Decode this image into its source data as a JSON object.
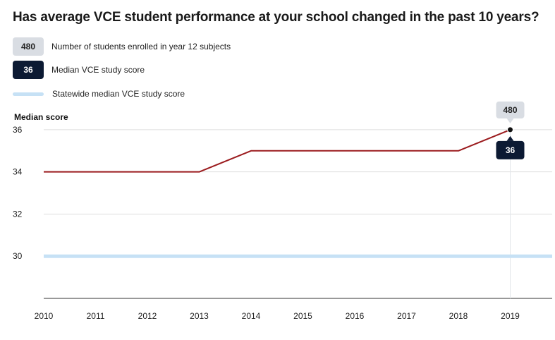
{
  "title": "Has average VCE student performance at your school changed in the past 10 years?",
  "legend": {
    "count_badge": "480",
    "count_label": "Number of students enrolled in year 12 subjects",
    "median_badge": "36",
    "median_label": "Median VCE study score",
    "statewide_label": "Statewide median VCE study score"
  },
  "colors": {
    "school_line": "#9b1b1e",
    "statewide_line": "#c6e1f5",
    "count_badge": "#d9dde3",
    "median_badge": "#0c1a33",
    "grid": "#dddddd"
  },
  "chart_data": {
    "type": "line",
    "title": "Has average VCE student performance at your school changed in the past 10 years?",
    "ylabel": "Median score",
    "xlabel": "",
    "x": [
      "2010",
      "2011",
      "2012",
      "2013",
      "2014",
      "2015",
      "2016",
      "2017",
      "2018",
      "2019"
    ],
    "yticks": [
      30,
      32,
      34,
      36
    ],
    "ylim": [
      28,
      36.8
    ],
    "grid": true,
    "series": [
      {
        "name": "Median VCE study score",
        "values": [
          34,
          34,
          34,
          34,
          35,
          35,
          35,
          35,
          35,
          36
        ]
      },
      {
        "name": "Statewide median VCE study score",
        "values": [
          30,
          30,
          30,
          30,
          30,
          30,
          30,
          30,
          30,
          30
        ]
      }
    ],
    "highlight": {
      "x": "2019",
      "students_enrolled": "480",
      "median_score": "36"
    }
  }
}
